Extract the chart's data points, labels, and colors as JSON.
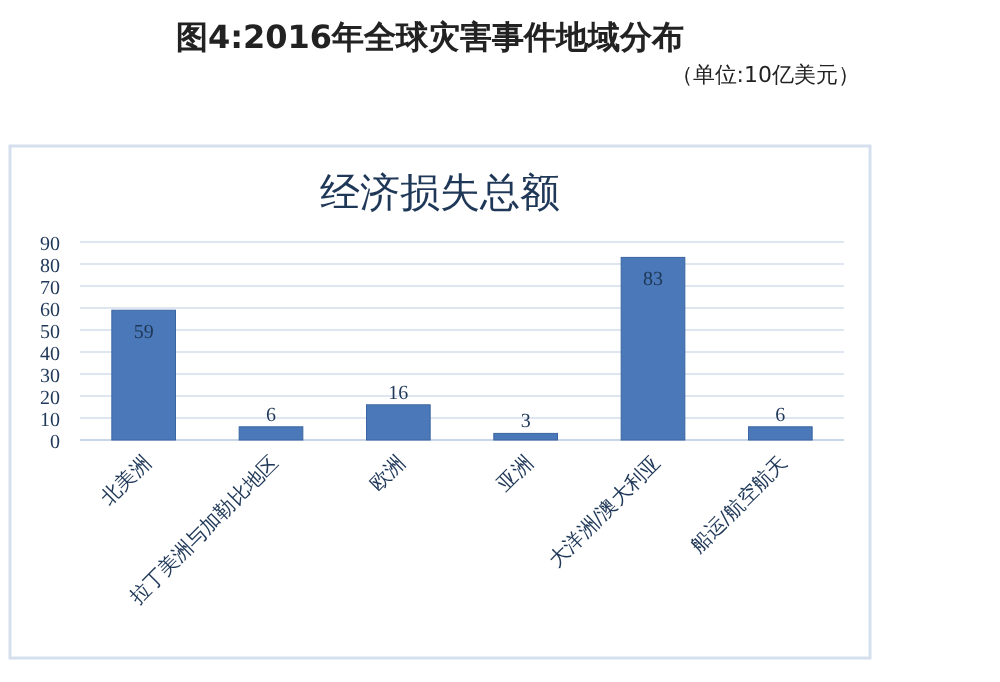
{
  "chart_data": {
    "type": "bar",
    "title": "图4:2016年全球灾害事件地域分布",
    "subtitle": "（单位:10亿美元）",
    "annotations": [
      "经济损失总额"
    ],
    "categories": [
      "北美洲",
      "拉丁美洲与加勒比地区",
      "欧洲",
      "亚洲",
      "大洋洲/澳大利亚",
      "船运/航空航天"
    ],
    "values": [
      59,
      6,
      16,
      3,
      83,
      6
    ],
    "color": "#4a78b8",
    "ylim": [
      0,
      90
    ],
    "yticks": [
      0,
      10,
      20,
      30,
      40,
      50,
      60,
      70,
      80,
      90
    ],
    "grid": "y",
    "data_labels": true
  }
}
